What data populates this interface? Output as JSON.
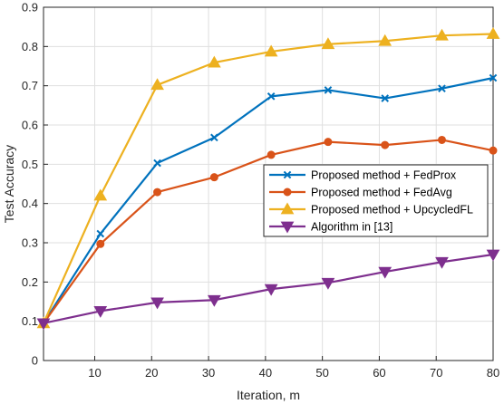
{
  "chart_data": {
    "type": "line",
    "title": "",
    "xlabel": "Iteration, m",
    "ylabel": "Test Accuracy",
    "xlim": [
      1,
      80
    ],
    "ylim": [
      0,
      0.9
    ],
    "xticks": [
      10,
      20,
      30,
      40,
      50,
      60,
      70,
      80
    ],
    "yticks": [
      0,
      0.1,
      0.2,
      0.3,
      0.4,
      0.5,
      0.6,
      0.7,
      0.8,
      0.9
    ],
    "grid": true,
    "legend_position": "center-right",
    "x": [
      1,
      11,
      21,
      31,
      41,
      51,
      61,
      71,
      80
    ],
    "series": [
      {
        "name": "Proposed method + FedProx",
        "color": "#0072BD",
        "marker": "x",
        "values": [
          0.095,
          0.323,
          0.503,
          0.568,
          0.673,
          0.689,
          0.668,
          0.693,
          0.72
        ]
      },
      {
        "name": "Proposed method + FedAvg",
        "color": "#D95319",
        "marker": "circle",
        "values": [
          0.095,
          0.297,
          0.429,
          0.467,
          0.524,
          0.557,
          0.549,
          0.562,
          0.535
        ]
      },
      {
        "name": "Proposed method + UpcycledFL",
        "color": "#EDB120",
        "marker": "triangle-up",
        "values": [
          0.095,
          0.42,
          0.702,
          0.759,
          0.787,
          0.806,
          0.814,
          0.828,
          0.832
        ]
      },
      {
        "name": "Algorithm in [13]",
        "color": "#7E2F8E",
        "marker": "triangle-down",
        "values": [
          0.095,
          0.126,
          0.148,
          0.154,
          0.182,
          0.198,
          0.226,
          0.251,
          0.27
        ]
      }
    ]
  }
}
